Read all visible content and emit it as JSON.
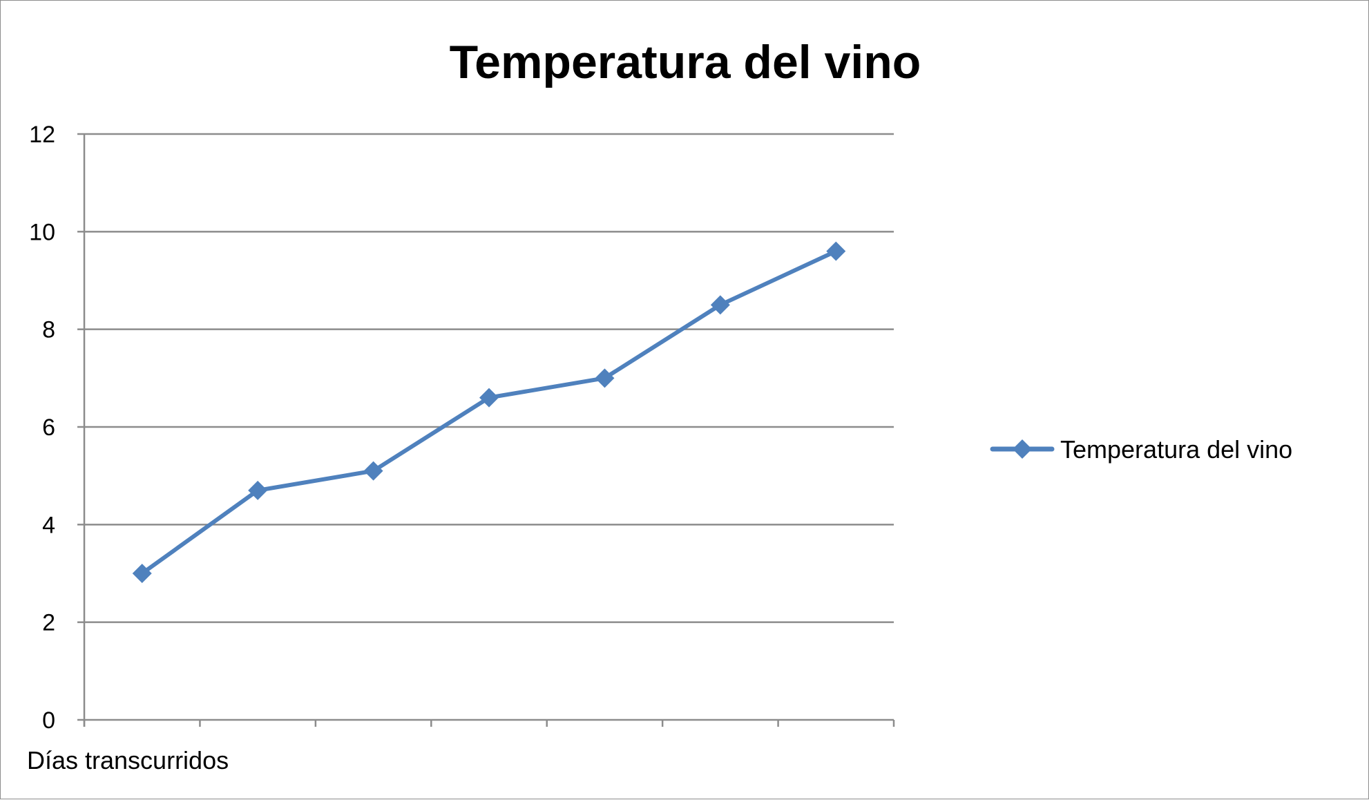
{
  "chart_data": {
    "type": "line",
    "title": "Temperatura del vino",
    "xlabel": "Días transcurridos",
    "ylabel": "",
    "ylim": [
      0,
      12
    ],
    "yticks": [
      "0",
      "2",
      "4",
      "6",
      "8",
      "10",
      "12"
    ],
    "categories": [
      "",
      "",
      "",
      "",
      "",
      "",
      ""
    ],
    "series": [
      {
        "name": "Temperatura del vino",
        "values": [
          3.0,
          4.7,
          5.1,
          6.6,
          7.0,
          8.5,
          9.6
        ],
        "color": "#4f81bd",
        "marker": "diamond"
      }
    ],
    "grid": true,
    "legend": "right"
  }
}
